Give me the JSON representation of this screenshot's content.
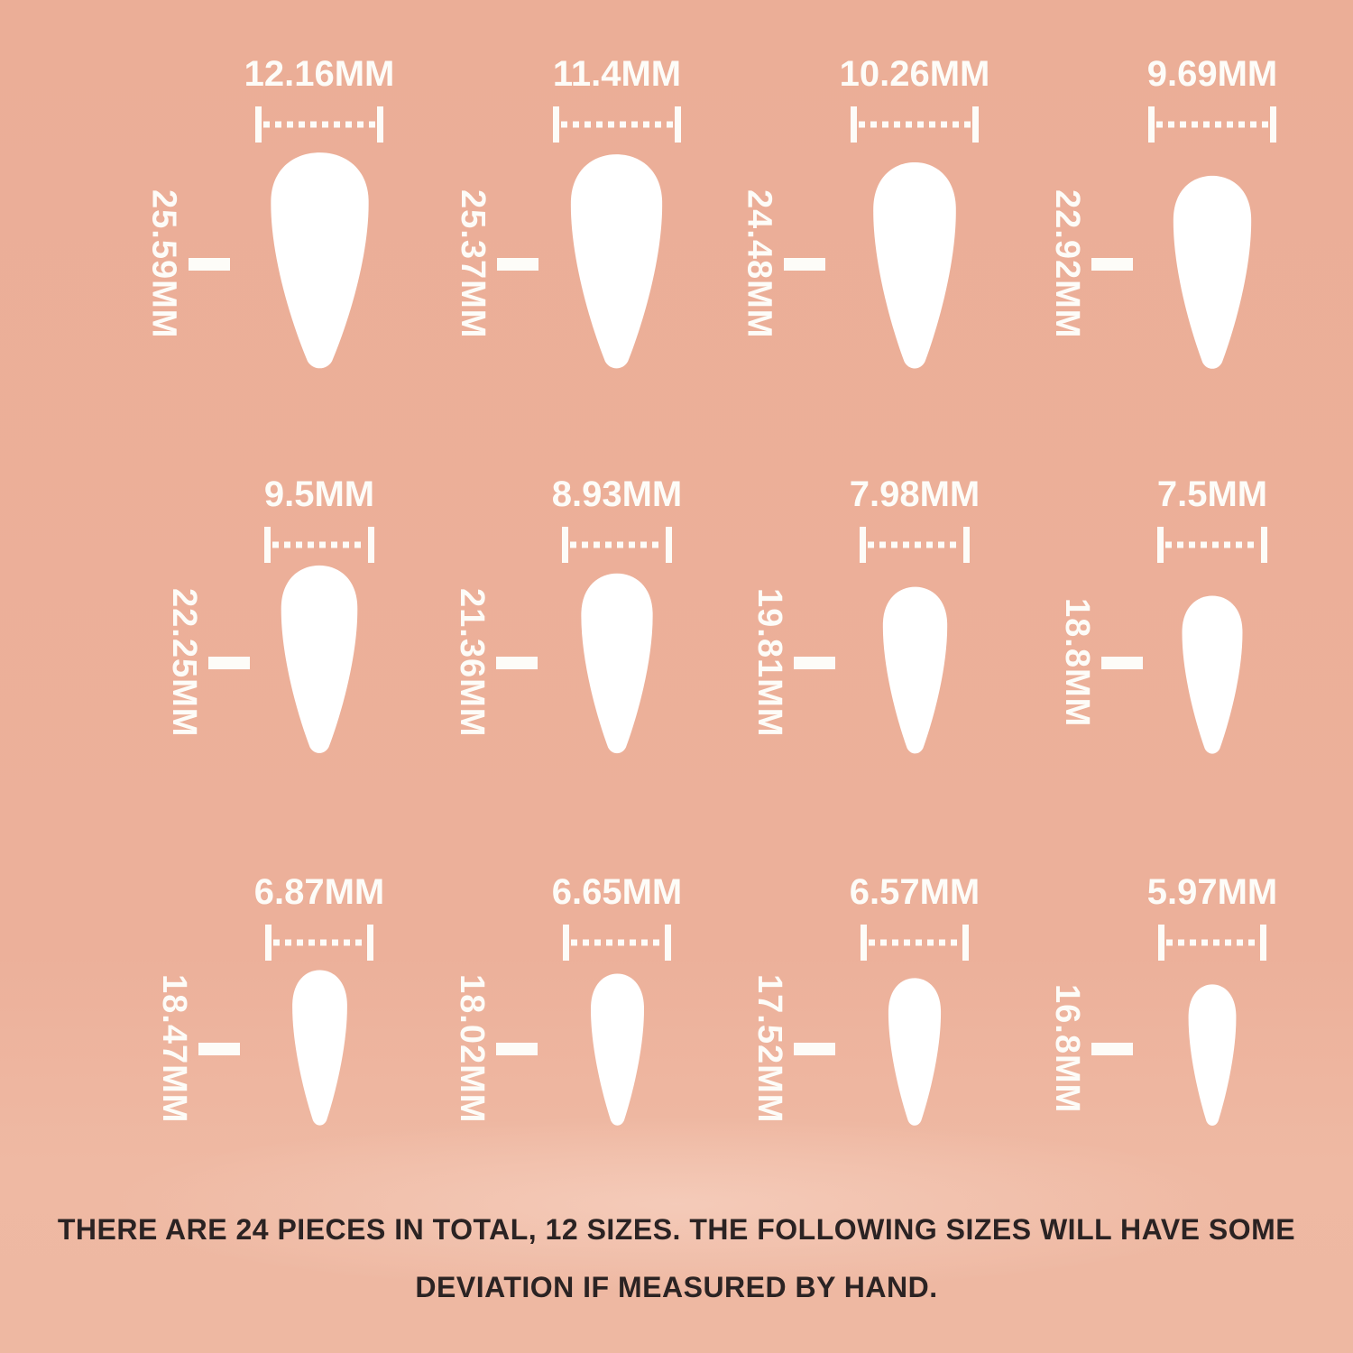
{
  "page": {
    "background_color": "#ecb099",
    "measure_color": "#fdfcf8",
    "footer_text_color": "#2b2323",
    "nail_color": "#ffffff"
  },
  "unit": "MM",
  "sizes": [
    {
      "width_label": "12.16MM",
      "height_label": "25.59MM",
      "width_mm": 12.16,
      "height_mm": 25.59
    },
    {
      "width_label": "11.4MM",
      "height_label": "25.37MM",
      "width_mm": 11.4,
      "height_mm": 25.37
    },
    {
      "width_label": "10.26MM",
      "height_label": "24.48MM",
      "width_mm": 10.26,
      "height_mm": 24.48
    },
    {
      "width_label": "9.69MM",
      "height_label": "22.92MM",
      "width_mm": 9.69,
      "height_mm": 22.92
    },
    {
      "width_label": "9.5MM",
      "height_label": "22.25MM",
      "width_mm": 9.5,
      "height_mm": 22.25
    },
    {
      "width_label": "8.93MM",
      "height_label": "21.36MM",
      "width_mm": 8.93,
      "height_mm": 21.36
    },
    {
      "width_label": "7.98MM",
      "height_label": "19.81MM",
      "width_mm": 7.98,
      "height_mm": 19.81
    },
    {
      "width_label": "7.5MM",
      "height_label": "18.8MM",
      "width_mm": 7.5,
      "height_mm": 18.8
    },
    {
      "width_label": "6.87MM",
      "height_label": "18.47MM",
      "width_mm": 6.87,
      "height_mm": 18.47
    },
    {
      "width_label": "6.65MM",
      "height_label": "18.02MM",
      "width_mm": 6.65,
      "height_mm": 18.02
    },
    {
      "width_label": "6.57MM",
      "height_label": "17.52MM",
      "width_mm": 6.57,
      "height_mm": 17.52
    },
    {
      "width_label": "5.97MM",
      "height_label": "16.8MM",
      "width_mm": 5.97,
      "height_mm": 16.8
    }
  ],
  "footer": {
    "lines": [
      "THERE ARE 24 PIECES IN TOTAL, 12 SIZES. THE FOLLOWING SIZES WILL HAVE SOME",
      "DEVIATION IF MEASURED BY HAND."
    ]
  }
}
